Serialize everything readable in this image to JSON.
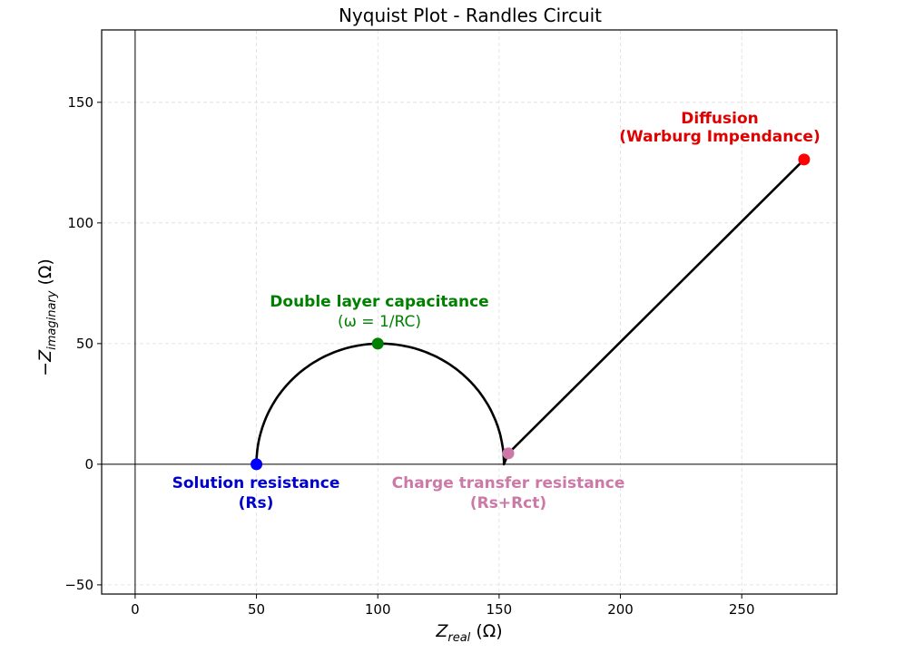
{
  "chart_data": {
    "type": "line",
    "title": "Nyquist Plot - Randles Circuit",
    "xlabel": "Z_real (Ω)",
    "ylabel": "-Z_imaginary (Ω)",
    "xlim": [
      -13.8,
      289.2
    ],
    "ylim": [
      -53.8,
      180
    ],
    "xticks": [
      0,
      50,
      100,
      150,
      200,
      250
    ],
    "yticks": [
      -50,
      0,
      50,
      100,
      150
    ],
    "grid": true,
    "series": [
      {
        "name": "Impedance curve",
        "color": "#000000",
        "segments": [
          {
            "kind": "semicircle",
            "start": [
              50,
              0
            ],
            "peak": [
              100,
              50
            ],
            "end": [
              152,
              4
            ]
          },
          {
            "kind": "line",
            "start": [
              153.8,
              4.5
            ],
            "end": [
              275.7,
              126.3
            ]
          }
        ]
      }
    ],
    "points": [
      {
        "name": "Solution resistance",
        "sub": "(Rs)",
        "x": 50,
        "y": 0,
        "color": "#0000ff"
      },
      {
        "name": "Double layer capacitance",
        "sub": "(ω = 1/RC)",
        "x": 100,
        "y": 50,
        "color": "#008000"
      },
      {
        "name": "Charge transfer resistance",
        "sub": "(Rs+Rct)",
        "x": 153.8,
        "y": 4.5,
        "color": "#cc79a7"
      },
      {
        "name": "Diffusion",
        "sub": "(Warburg Impendance)",
        "x": 275.7,
        "y": 126.3,
        "color": "#ff0000"
      }
    ]
  },
  "labels": {
    "title": "Nyquist Plot - Randles Circuit",
    "xlabel_main": "Z",
    "xlabel_sub": "real",
    "xlabel_unit": " (Ω)",
    "ylabel_main": "−Z",
    "ylabel_sub": "imaginary",
    "ylabel_unit": " (Ω)",
    "ann_rs_1": "Solution resistance",
    "ann_rs_2": "(Rs)",
    "ann_dl_1": "Double layer capacitance",
    "ann_dl_2": "(ω = 1/RC)",
    "ann_ct_1": "Charge transfer resistance",
    "ann_ct_2": "(Rs+Rct)",
    "ann_w_1": "Diffusion",
    "ann_w_2": "(Warburg Impendance)"
  }
}
